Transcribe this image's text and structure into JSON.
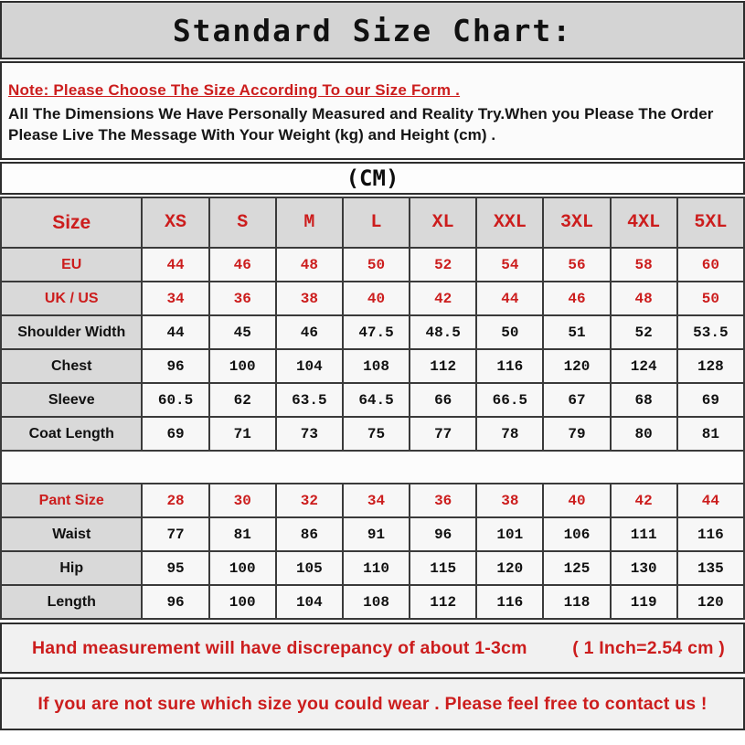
{
  "title": "Standard Size Chart:",
  "note": {
    "headline": "Note: Please Choose The Size According To our Size Form .",
    "body": "All The Dimensions We Have Personally Measured and Reality Try.When you Please The Order Please Live The Message With Your Weight (kg) and Height (cm) ."
  },
  "table": {
    "unit_label": "(CM)",
    "header": {
      "label": "Size",
      "sizes": [
        "XS",
        "S",
        "M",
        "L",
        "XL",
        "XXL",
        "3XL",
        "4XL",
        "5XL"
      ]
    },
    "rows": [
      {
        "label": "EU",
        "style": "red",
        "values": [
          "44",
          "46",
          "48",
          "50",
          "52",
          "54",
          "56",
          "58",
          "60"
        ]
      },
      {
        "label": "UK / US",
        "style": "red",
        "values": [
          "34",
          "36",
          "38",
          "40",
          "42",
          "44",
          "46",
          "48",
          "50"
        ]
      },
      {
        "label": "Shoulder Width",
        "style": "dark",
        "values": [
          "44",
          "45",
          "46",
          "47.5",
          "48.5",
          "50",
          "51",
          "52",
          "53.5"
        ]
      },
      {
        "label": "Chest",
        "style": "dark",
        "values": [
          "96",
          "100",
          "104",
          "108",
          "112",
          "116",
          "120",
          "124",
          "128"
        ]
      },
      {
        "label": "Sleeve",
        "style": "dark",
        "values": [
          "60.5",
          "62",
          "63.5",
          "64.5",
          "66",
          "66.5",
          "67",
          "68",
          "69"
        ]
      },
      {
        "label": "Coat Length",
        "style": "dark",
        "values": [
          "69",
          "71",
          "73",
          "75",
          "77",
          "78",
          "79",
          "80",
          "81"
        ]
      },
      {
        "spacer": true
      },
      {
        "label": "Pant Size",
        "style": "red",
        "values": [
          "28",
          "30",
          "32",
          "34",
          "36",
          "38",
          "40",
          "42",
          "44"
        ]
      },
      {
        "label": "Waist",
        "style": "dark",
        "values": [
          "77",
          "81",
          "86",
          "91",
          "96",
          "101",
          "106",
          "111",
          "116"
        ]
      },
      {
        "label": "Hip",
        "style": "dark",
        "values": [
          "95",
          "100",
          "105",
          "110",
          "115",
          "120",
          "125",
          "130",
          "135"
        ]
      },
      {
        "label": "Length",
        "style": "dark",
        "values": [
          "96",
          "100",
          "104",
          "108",
          "112",
          "116",
          "118",
          "119",
          "120"
        ]
      }
    ]
  },
  "footer": {
    "measurement_note": "Hand measurement will have discrepancy of about 1-3cm",
    "inch_conversion": "( 1 Inch=2.54 cm )",
    "contact_note": "If you are not sure which size you could wear . Please feel free to contact us !"
  },
  "colors": {
    "accent_red": "#cc1d1d",
    "header_gray": "#d4d4d4",
    "cell_gray": "#d9d9d9",
    "data_cell_bg": "#f7f7f7",
    "border": "#3a3a3a"
  }
}
